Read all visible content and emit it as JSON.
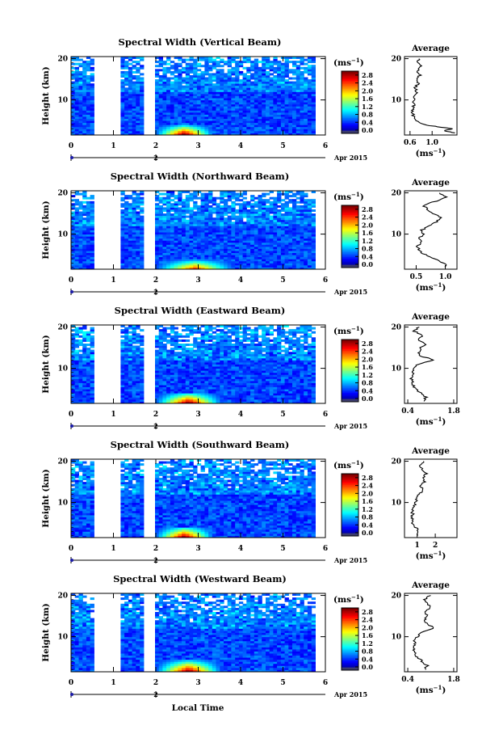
{
  "figure": {
    "x_axis_label": "Local Time"
  },
  "chart_data": [
    {
      "type": "heatmap",
      "title": "Spectral Width (Vertical Beam)",
      "ylabel": "Height (km)",
      "x_ticks": [
        "0",
        "1",
        "2",
        "3",
        "4",
        "5",
        "6"
      ],
      "y_ticks": [
        "10",
        "20"
      ],
      "date_ticks": [
        "2"
      ],
      "date_label": "Apr 2015",
      "xlim": [
        0,
        6
      ],
      "ylim": [
        1.5,
        20.5
      ],
      "data_gaps": [
        [
          0.5,
          1.15
        ],
        [
          1.7,
          1.95
        ]
      ],
      "data_end": 5.7,
      "colorbar": {
        "unit": "(ms",
        "unit_exp": "−1",
        "unit_close": ")",
        "ticks": [
          "0.0",
          "0.4",
          "0.8",
          "1.2",
          "1.6",
          "2.0",
          "2.4",
          "2.8"
        ],
        "range": [
          0,
          3.0
        ]
      },
      "high_width_patches": [
        {
          "x": [
            1.95,
            3.4
          ],
          "height_max": 4.0,
          "peak": 2.7
        }
      ],
      "average": {
        "title": "Average",
        "xlabel": "(ms",
        "xlabel_exp": "−1",
        "xlabel_close": ")",
        "x_ticks": [
          "0.6",
          "1.0"
        ],
        "xlim": [
          0.5,
          1.45
        ],
        "profile": [
          [
            2,
            1.4
          ],
          [
            2.5,
            1.22
          ],
          [
            3,
            1.35
          ],
          [
            3.5,
            1.1
          ],
          [
            4,
            0.85
          ],
          [
            5,
            0.72
          ],
          [
            6,
            0.66
          ],
          [
            7,
            0.64
          ],
          [
            8,
            0.65
          ],
          [
            9,
            0.68
          ],
          [
            10,
            0.66
          ],
          [
            11,
            0.7
          ],
          [
            12,
            0.72
          ],
          [
            13,
            0.7
          ],
          [
            14,
            0.75
          ],
          [
            15,
            0.72
          ],
          [
            16,
            0.78
          ],
          [
            17,
            0.74
          ],
          [
            18,
            0.8
          ],
          [
            19,
            0.73
          ],
          [
            20,
            0.76
          ]
        ]
      }
    },
    {
      "type": "heatmap",
      "title": "Spectral Width (Northward Beam)",
      "ylabel": "Height (km)",
      "x_ticks": [
        "0",
        "1",
        "2",
        "3",
        "4",
        "5",
        "6"
      ],
      "y_ticks": [
        "10",
        "20"
      ],
      "date_ticks": [
        "2"
      ],
      "date_label": "Apr 2015",
      "xlim": [
        0,
        6
      ],
      "ylim": [
        1.5,
        20.5
      ],
      "data_gaps": [
        [
          0.5,
          1.15
        ],
        [
          1.7,
          1.95
        ]
      ],
      "data_end": 5.7,
      "colorbar": {
        "unit": "(ms",
        "unit_exp": "−1",
        "unit_close": ")",
        "ticks": [
          "0.0",
          "0.4",
          "0.8",
          "1.2",
          "1.6",
          "2.0",
          "2.4",
          "2.8"
        ],
        "range": [
          0,
          3.0
        ]
      },
      "high_width_patches": [
        {
          "x": [
            1.95,
            3.9
          ],
          "height_max": 3.8,
          "peak": 2.2
        }
      ],
      "average": {
        "title": "Average",
        "xlabel": "(ms",
        "xlabel_exp": "−1",
        "xlabel_close": ")",
        "x_ticks": [
          "0.5",
          "1.0"
        ],
        "xlim": [
          0.3,
          1.2
        ],
        "profile": [
          [
            2,
            1.0
          ],
          [
            3,
            0.98
          ],
          [
            4,
            0.82
          ],
          [
            5,
            0.65
          ],
          [
            6,
            0.55
          ],
          [
            7,
            0.52
          ],
          [
            8,
            0.58
          ],
          [
            9,
            0.55
          ],
          [
            10,
            0.62
          ],
          [
            11,
            0.6
          ],
          [
            12,
            0.72
          ],
          [
            13,
            0.85
          ],
          [
            14,
            0.92
          ],
          [
            15,
            0.8
          ],
          [
            16,
            0.7
          ],
          [
            17,
            0.62
          ],
          [
            18,
            0.85
          ],
          [
            19,
            1.0
          ],
          [
            20,
            0.9
          ]
        ]
      }
    },
    {
      "type": "heatmap",
      "title": "Spectral Width (Eastward Beam)",
      "ylabel": "Height (km)",
      "x_ticks": [
        "0",
        "1",
        "2",
        "3",
        "4",
        "5",
        "6"
      ],
      "y_ticks": [
        "10",
        "20"
      ],
      "date_ticks": [
        "2"
      ],
      "date_label": "Apr 2015",
      "xlim": [
        0,
        6
      ],
      "ylim": [
        1.5,
        20.5
      ],
      "data_gaps": [
        [
          0.5,
          1.15
        ],
        [
          1.7,
          1.95
        ]
      ],
      "data_end": 5.7,
      "colorbar": {
        "unit": "(ms",
        "unit_exp": "−1",
        "unit_close": ")",
        "ticks": [
          "0.0",
          "0.4",
          "0.8",
          "1.2",
          "1.6",
          "2.0",
          "2.4",
          "2.8"
        ],
        "range": [
          0,
          3.0
        ]
      },
      "high_width_patches": [
        {
          "x": [
            1.95,
            3.6
          ],
          "height_max": 4.2,
          "peak": 2.7
        }
      ],
      "average": {
        "title": "Average",
        "xlabel": "(ms",
        "xlabel_exp": "−1",
        "xlabel_close": ")",
        "x_ticks": [
          "0.4",
          "1.8"
        ],
        "xlim": [
          0.3,
          1.9
        ],
        "profile": [
          [
            2,
            0.9
          ],
          [
            3,
            0.95
          ],
          [
            4,
            0.8
          ],
          [
            5,
            0.62
          ],
          [
            6,
            0.55
          ],
          [
            7,
            0.52
          ],
          [
            8,
            0.52
          ],
          [
            9,
            0.55
          ],
          [
            10,
            0.62
          ],
          [
            11,
            0.7
          ],
          [
            12,
            1.2
          ],
          [
            13,
            0.8
          ],
          [
            14,
            0.75
          ],
          [
            15,
            0.8
          ],
          [
            16,
            0.95
          ],
          [
            17,
            0.7
          ],
          [
            18,
            0.85
          ],
          [
            19,
            0.6
          ],
          [
            20,
            0.75
          ]
        ]
      }
    },
    {
      "type": "heatmap",
      "title": "Spectral Width (Southward Beam)",
      "ylabel": "Height (km)",
      "x_ticks": [
        "0",
        "1",
        "2",
        "3",
        "4",
        "5",
        "6"
      ],
      "y_ticks": [
        "10",
        "20"
      ],
      "date_ticks": [
        "2"
      ],
      "date_label": "Apr 2015",
      "xlim": [
        0,
        6
      ],
      "ylim": [
        1.5,
        20.5
      ],
      "data_gaps": [
        [
          0.5,
          1.15
        ],
        [
          1.7,
          1.95
        ]
      ],
      "data_end": 5.7,
      "colorbar": {
        "unit": "(ms",
        "unit_exp": "−1",
        "unit_close": ")",
        "ticks": [
          "0.0",
          "0.4",
          "0.8",
          "1.2",
          "1.6",
          "2.0",
          "2.4",
          "2.8"
        ],
        "range": [
          0,
          3.0
        ]
      },
      "high_width_patches": [
        {
          "x": [
            1.95,
            3.4
          ],
          "height_max": 4.2,
          "peak": 2.7
        }
      ],
      "average": {
        "title": "Average",
        "xlabel": "(ms",
        "xlabel_exp": "−1",
        "xlabel_close": ")",
        "x_ticks": [
          "1",
          "2"
        ],
        "xlim": [
          0.3,
          3.2
        ],
        "profile": [
          [
            2,
            1.0
          ],
          [
            3,
            1.1
          ],
          [
            4,
            0.9
          ],
          [
            5,
            0.78
          ],
          [
            6,
            0.72
          ],
          [
            7,
            0.75
          ],
          [
            8,
            0.72
          ],
          [
            9,
            0.85
          ],
          [
            10,
            0.9
          ],
          [
            11,
            1.0
          ],
          [
            12,
            1.1
          ],
          [
            13,
            1.3
          ],
          [
            14,
            1.2
          ],
          [
            15,
            1.4
          ],
          [
            16,
            1.3
          ],
          [
            17,
            1.5
          ],
          [
            18,
            1.3
          ],
          [
            19,
            1.1
          ],
          [
            20,
            1.35
          ]
        ]
      }
    },
    {
      "type": "heatmap",
      "title": "Spectral Width (Westward Beam)",
      "ylabel": "Height (km)",
      "x_ticks": [
        "0",
        "1",
        "2",
        "3",
        "4",
        "5",
        "6"
      ],
      "y_ticks": [
        "10",
        "20"
      ],
      "date_ticks": [
        "2"
      ],
      "date_label": "Apr 2015",
      "xlim": [
        0,
        6
      ],
      "ylim": [
        1.5,
        20.5
      ],
      "data_gaps": [
        [
          0.5,
          1.15
        ],
        [
          1.7,
          1.95
        ]
      ],
      "data_end": 5.7,
      "colorbar": {
        "unit": "(ms",
        "unit_exp": "−1",
        "unit_close": ")",
        "ticks": [
          "0.0",
          "0.4",
          "0.8",
          "1.2",
          "1.6",
          "2.0",
          "2.4",
          "2.8"
        ],
        "range": [
          0,
          3.0
        ]
      },
      "high_width_patches": [
        {
          "x": [
            1.95,
            3.6
          ],
          "height_max": 4.5,
          "peak": 2.7
        }
      ],
      "average": {
        "title": "Average",
        "xlabel": "(ms",
        "xlabel_exp": "−1",
        "xlabel_close": ")",
        "x_ticks": [
          "0.4",
          "1.8"
        ],
        "xlim": [
          0.3,
          1.9
        ],
        "profile": [
          [
            2,
            0.9
          ],
          [
            3,
            1.0
          ],
          [
            4,
            0.85
          ],
          [
            5,
            0.7
          ],
          [
            6,
            0.62
          ],
          [
            7,
            0.58
          ],
          [
            8,
            0.6
          ],
          [
            9,
            0.6
          ],
          [
            10,
            0.7
          ],
          [
            11,
            0.8
          ],
          [
            12,
            1.2
          ],
          [
            13,
            1.0
          ],
          [
            14,
            0.9
          ],
          [
            15,
            1.0
          ],
          [
            16,
            0.95
          ],
          [
            17,
            1.1
          ],
          [
            18,
            1.0
          ],
          [
            19,
            0.9
          ],
          [
            20,
            1.1
          ]
        ]
      }
    }
  ]
}
